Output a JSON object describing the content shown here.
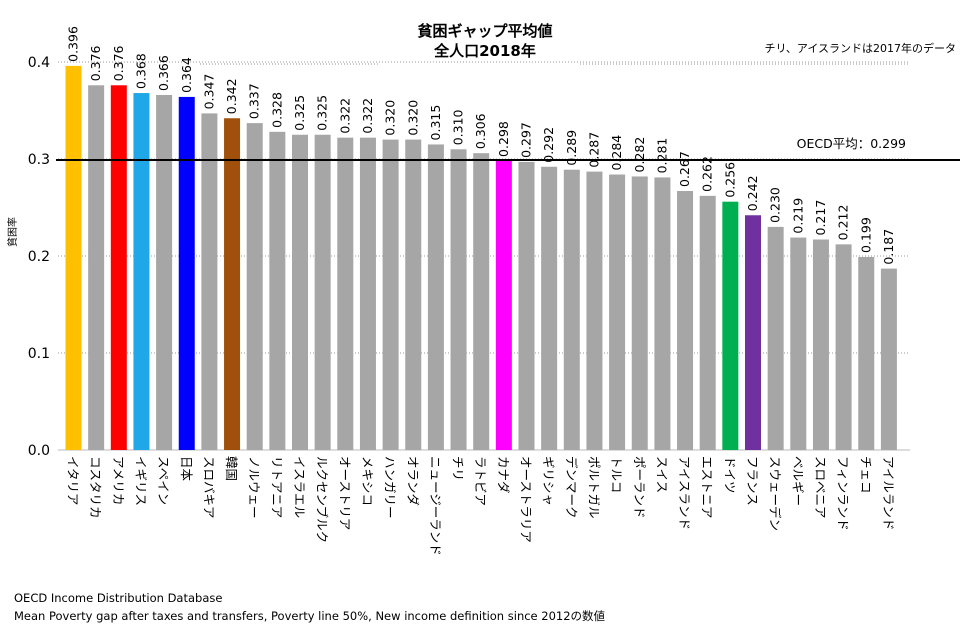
{
  "chart_data": {
    "type": "bar",
    "title": "貧困ギャップ平均値",
    "subtitle": "全人口2018年",
    "note": "チリ、アイスランドは2017年のデータ",
    "ylabel": "貧困率",
    "xlabel": "",
    "ylim": [
      0,
      0.45
    ],
    "yticks": [
      "0.0",
      "0.1",
      "0.2",
      "0.3",
      "0.4"
    ],
    "grid": "horizontal dotted",
    "reference_line": {
      "label": "OECD平均：0.299",
      "value": 0.299
    },
    "categories": [
      "イタリア",
      "コスタリカ",
      "アメリカ",
      "イギリス",
      "スペイン",
      "日本",
      "スロバキア",
      "韓国",
      "ノルウェー",
      "リトアニア",
      "イスラエル",
      "ルクセンブルク",
      "オーストリア",
      "メキシコ",
      "ハンガリー",
      "オランダ",
      "ニュージーランド",
      "チリ",
      "ラトビア",
      "カナダ",
      "オーストラリア",
      "ギリシャ",
      "デンマーク",
      "ポルトガル",
      "トルコ",
      "ポーランド",
      "スイス",
      "アイスランド",
      "エストニア",
      "ドイツ",
      "フランス",
      "スウェーデン",
      "ベルギー",
      "スロベニア",
      "フィンランド",
      "チェコ",
      "アイルランド"
    ],
    "values": [
      0.396,
      0.376,
      0.376,
      0.368,
      0.366,
      0.364,
      0.347,
      0.342,
      0.337,
      0.328,
      0.325,
      0.325,
      0.322,
      0.322,
      0.32,
      0.32,
      0.315,
      0.31,
      0.306,
      0.298,
      0.297,
      0.292,
      0.289,
      0.287,
      0.284,
      0.282,
      0.281,
      0.267,
      0.262,
      0.256,
      0.242,
      0.23,
      0.219,
      0.217,
      0.212,
      0.199,
      0.187
    ],
    "value_labels": [
      "0.396",
      "0.376",
      "0.376",
      "0.368",
      "0.366",
      "0.364",
      "0.347",
      "0.342",
      "0.337",
      "0.328",
      "0.325",
      "0.325",
      "0.322",
      "0.322",
      "0.320",
      "0.320",
      "0.315",
      "0.310",
      "0.306",
      "0.298",
      "0.297",
      "0.292",
      "0.289",
      "0.287",
      "0.284",
      "0.282",
      "0.281",
      "0.267",
      "0.262",
      "0.256",
      "0.242",
      "0.230",
      "0.219",
      "0.217",
      "0.212",
      "0.199",
      "0.187"
    ],
    "colors": [
      "#FFC000",
      "#A6A6A6",
      "#FF0000",
      "#1FA7E8",
      "#A6A6A6",
      "#0000FF",
      "#A6A6A6",
      "#A0500A",
      "#A6A6A6",
      "#A6A6A6",
      "#A6A6A6",
      "#A6A6A6",
      "#A6A6A6",
      "#A6A6A6",
      "#A6A6A6",
      "#A6A6A6",
      "#A6A6A6",
      "#A6A6A6",
      "#A6A6A6",
      "#FF00FF",
      "#A6A6A6",
      "#A6A6A6",
      "#A6A6A6",
      "#A6A6A6",
      "#A6A6A6",
      "#A6A6A6",
      "#A6A6A6",
      "#A6A6A6",
      "#A6A6A6",
      "#00B050",
      "#7030A0",
      "#A6A6A6",
      "#A6A6A6",
      "#A6A6A6",
      "#A6A6A6",
      "#A6A6A6",
      "#A6A6A6"
    ]
  },
  "footer": {
    "source": "OECD Income Distribution Database",
    "description": "Mean Poverty gap after taxes and transfers, Poverty line 50%, New income definition since 2012の数値"
  }
}
